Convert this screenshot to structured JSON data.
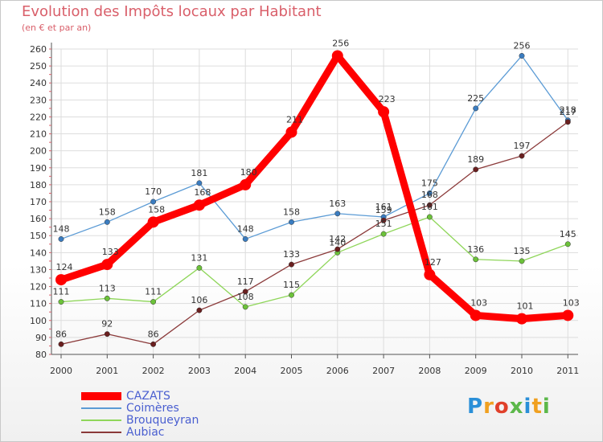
{
  "title": "Evolution des Impôts locaux par Habitant",
  "subtitle": "(en € et par an)",
  "logo": "Proxiti",
  "chart_data": {
    "type": "line",
    "title": "Evolution des Impôts locaux par Habitant",
    "xlabel": "",
    "ylabel": "(en € et par an)",
    "ylim": [
      80,
      260
    ],
    "yticks": [
      80,
      90,
      100,
      110,
      120,
      130,
      140,
      150,
      160,
      170,
      180,
      190,
      200,
      210,
      220,
      230,
      240,
      250,
      260
    ],
    "categories": [
      "2000",
      "2001",
      "2002",
      "2003",
      "2004",
      "2005",
      "2006",
      "2007",
      "2008",
      "2009",
      "2010",
      "2011"
    ],
    "grid": true,
    "legend_position": "bottom-left",
    "series": [
      {
        "name": "Coimères",
        "color": "#5b9bd5",
        "point_color": "#3a7cc0",
        "values": [
          148,
          158,
          170,
          181,
          148,
          158,
          163,
          161,
          175,
          225,
          256,
          218
        ]
      },
      {
        "name": "Brouqueyran",
        "color": "#8fd65a",
        "point_color": "#6cc23a",
        "values": [
          111,
          113,
          111,
          131,
          108,
          115,
          140,
          151,
          161,
          136,
          135,
          145
        ]
      },
      {
        "name": "Aubiac",
        "color": "#8b3a3a",
        "point_color": "#6a1f1f",
        "values": [
          86,
          92,
          86,
          106,
          117,
          133,
          142,
          159,
          168,
          189,
          197,
          217
        ]
      },
      {
        "name": "CAZATS",
        "color": "#ff0000",
        "point_color": "#ff0000",
        "values": [
          124,
          133,
          158,
          168,
          180,
          211,
          256,
          223,
          127,
          103,
          101,
          103
        ]
      }
    ]
  }
}
